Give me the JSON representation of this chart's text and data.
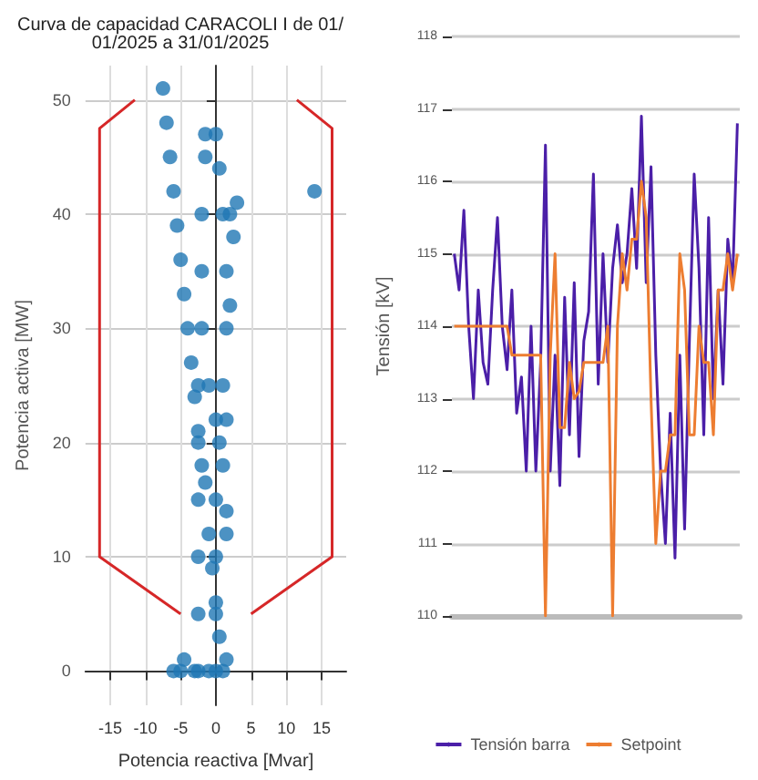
{
  "chart_data": [
    {
      "type": "scatter",
      "title": "Curva de capacidad CARACOLI I de 01/01/2025 a 31/01/2025",
      "xlabel": "Potencia reactiva [Mvar]",
      "ylabel": "Potencia activa [MW]",
      "xlim": [
        -18.5,
        18.5
      ],
      "xticks": [
        -15,
        -10,
        -5,
        0,
        5,
        10,
        15
      ],
      "ylim": [
        -3,
        53
      ],
      "yticks": [
        0,
        10,
        20,
        30,
        40,
        50
      ],
      "grid": true,
      "legend": false,
      "series": [
        {
          "type": "scatter",
          "marker": "circle",
          "color": "#1f77b4",
          "x": [
            -7.5,
            -7,
            -6.5,
            -6,
            -5.5,
            -5,
            -4.5,
            -4,
            -3.5,
            -3,
            -2.5,
            -2,
            -1.5,
            -1,
            -0.5,
            0,
            0.5,
            -2.5,
            -2.5,
            -2.5,
            -2.5,
            -2.5,
            -2.5,
            -2,
            -2,
            -2,
            -1.5,
            -1.5,
            0,
            0.5,
            1,
            1.5,
            1.5,
            1,
            0.5,
            0,
            0,
            0,
            0,
            2,
            3,
            2.5,
            2,
            1.5,
            1.5,
            -1,
            0,
            1,
            1.5,
            -6,
            -5,
            -4.5,
            -3,
            -1,
            1,
            1.5,
            14
          ],
          "values": [
            51,
            48,
            45,
            42,
            39,
            36,
            33,
            30,
            27,
            24,
            21,
            18,
            16.5,
            12,
            9,
            6,
            3,
            0,
            5,
            10,
            15,
            20,
            25,
            30,
            35,
            40,
            45,
            47,
            47,
            44,
            40,
            35,
            30,
            25,
            20,
            15,
            10,
            5,
            0,
            40,
            41,
            38,
            32,
            22,
            14,
            25,
            22,
            18,
            12,
            0,
            0,
            1,
            0,
            0,
            0,
            1,
            42
          ]
        },
        {
          "type": "line",
          "marker": "none",
          "color": "#d62728",
          "x": [
            -11.5,
            -16.5,
            -16.5,
            -5
          ],
          "values": [
            50,
            47.5,
            10,
            5
          ]
        },
        {
          "type": "line",
          "marker": "none",
          "color": "#d62728",
          "x": [
            5,
            16.5,
            16.5,
            11.5
          ],
          "values": [
            5,
            10,
            47.5,
            50
          ]
        }
      ]
    },
    {
      "type": "line",
      "ylabel": "Tensión [kV]",
      "ylim": [
        110,
        118
      ],
      "yticks": [
        110,
        111,
        112,
        113,
        114,
        115,
        116,
        117,
        118
      ],
      "grid": "y",
      "legend": "bottom",
      "marker": "none",
      "categories": [
        null,
        null,
        null,
        null,
        null,
        null,
        null,
        null,
        null,
        null,
        null,
        null,
        null,
        null,
        null,
        null,
        null,
        null,
        null,
        null,
        null,
        null,
        null,
        null,
        null,
        null,
        null,
        null,
        null,
        null,
        null,
        null,
        null,
        null,
        null,
        null,
        null,
        null,
        null,
        null,
        null,
        null,
        null,
        null,
        null,
        null,
        null,
        null,
        null,
        null,
        null,
        null,
        null,
        null,
        null,
        null,
        null,
        null,
        null,
        null
      ],
      "series": [
        {
          "name": "Tensión barra",
          "color": "#4b1fa8",
          "values": [
            115,
            114.5,
            115.6,
            114,
            113,
            114.5,
            113.5,
            113.2,
            114.5,
            115.5,
            114,
            113.4,
            114.5,
            112.8,
            113.3,
            112,
            114,
            112,
            113.5,
            116.5,
            112,
            113.6,
            111.8,
            114.4,
            112.5,
            114.6,
            112.2,
            113.8,
            114.2,
            116.1,
            113.2,
            115,
            113.5,
            114.8,
            115.4,
            114.6,
            115,
            115.9,
            114.8,
            116.9,
            114.6,
            116.2,
            113.6,
            112,
            111,
            112.8,
            110.8,
            113.6,
            111.2,
            113.8,
            116.1,
            114.8,
            112.5,
            115.5,
            113,
            114.5,
            113.2,
            115.2,
            114.6,
            116.8
          ]
        },
        {
          "name": "Setpoint",
          "color": "#ed7d31",
          "values": [
            114,
            114,
            114,
            114,
            114,
            114,
            114,
            114,
            114,
            114,
            114,
            114,
            113.6,
            113.6,
            113.6,
            113.6,
            113.6,
            113.6,
            113.6,
            110,
            113.6,
            115,
            112.6,
            112.6,
            113.5,
            113,
            113.1,
            113.5,
            113.5,
            113.5,
            113.5,
            113.5,
            114,
            110,
            114,
            115,
            114.5,
            115.2,
            115.2,
            116,
            115.5,
            113,
            111,
            112,
            112,
            112.5,
            112.5,
            115,
            114.5,
            112.5,
            112.5,
            114,
            113.5,
            113.5,
            112.5,
            114.5,
            114.5,
            115,
            114.5,
            115
          ]
        }
      ]
    }
  ]
}
